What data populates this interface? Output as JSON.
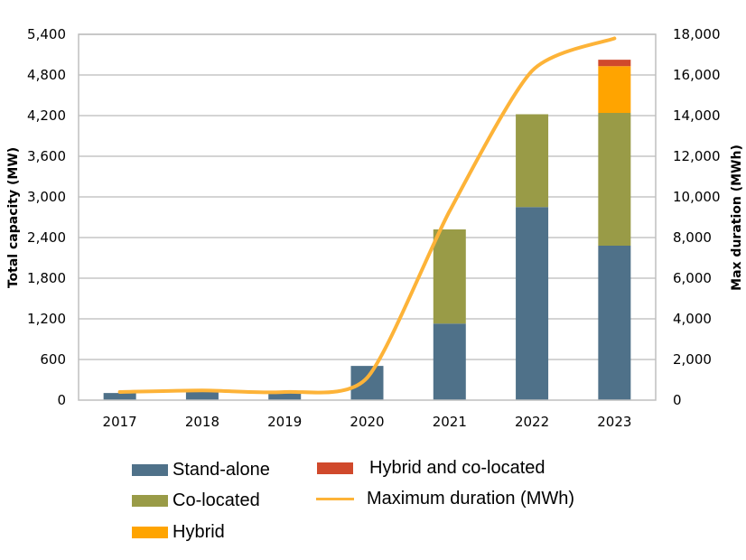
{
  "chart_data": {
    "type": "bar",
    "stacked": true,
    "title": "",
    "categories": [
      "2017",
      "2018",
      "2019",
      "2020",
      "2021",
      "2022",
      "2023"
    ],
    "series": [
      {
        "name": "Stand-alone",
        "color": "#4f7189",
        "axis": "left",
        "values": [
          105,
          120,
          120,
          505,
          1130,
          2850,
          2280
        ]
      },
      {
        "name": "Co-located",
        "color": "#999b47",
        "axis": "left",
        "values": [
          0,
          0,
          0,
          0,
          1390,
          1370,
          1960
        ]
      },
      {
        "name": "Hybrid",
        "color": "#ffa400",
        "axis": "left",
        "values": [
          0,
          0,
          0,
          0,
          0,
          0,
          690
        ]
      },
      {
        "name": "Hybrid and co-located",
        "color": "#d0492c",
        "axis": "left",
        "values": [
          0,
          0,
          0,
          0,
          0,
          0,
          95
        ]
      }
    ],
    "line_series": {
      "name": "Maximum duration (MWh)",
      "type": "line",
      "color": "#fdb338",
      "axis": "right",
      "values": [
        400,
        480,
        400,
        1100,
        9300,
        16200,
        17800
      ]
    },
    "ylabel": "Total capacity (MW)",
    "ylim": [
      0,
      5400
    ],
    "yticks": [
      "0",
      "600",
      "1,200",
      "1,800",
      "2,400",
      "3,000",
      "3,600",
      "4,200",
      "4,800",
      "5,400"
    ],
    "y2label": "Max duration (MWh)",
    "y2lim": [
      0,
      18000
    ],
    "y2ticks": [
      "0",
      "2,000",
      "4,000",
      "6,000",
      "8,000",
      "10,000",
      "12,000",
      "14,000",
      "16,000",
      "18,000"
    ],
    "xlabel": "",
    "grid": true,
    "legend_position": "bottom",
    "legend": [
      {
        "label": "Stand-alone",
        "kind": "bar",
        "color": "#4f7189"
      },
      {
        "label": "Co-located",
        "kind": "bar",
        "color": "#999b47"
      },
      {
        "label": "Hybrid",
        "kind": "bar",
        "color": "#ffa400"
      },
      {
        "label": "Hybrid and co-located",
        "kind": "bar",
        "color": "#d0492c"
      },
      {
        "label": "Maximum duration (MWh)",
        "kind": "line",
        "color": "#fdb338"
      }
    ]
  }
}
